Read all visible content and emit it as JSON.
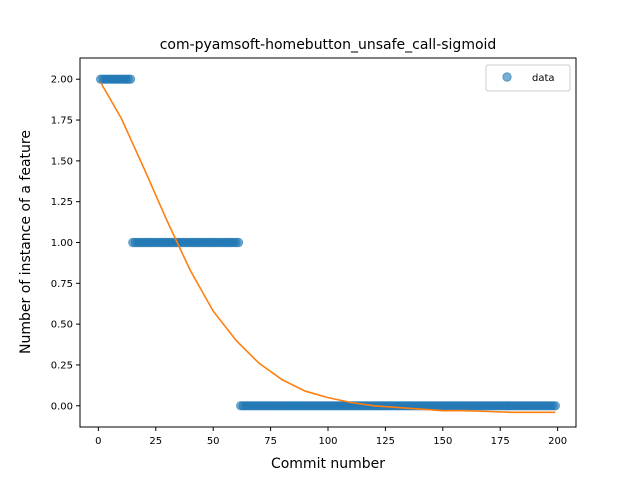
{
  "chart_data": {
    "type": "scatter",
    "title": "com-pyamsoft-homebutton_unsafe_call-sigmoid",
    "xlabel": "Commit number",
    "ylabel": "Number of instance of a feature",
    "xlim": [
      -8,
      208
    ],
    "ylim": [
      -0.13,
      2.13
    ],
    "xticks": [
      0,
      25,
      50,
      75,
      100,
      125,
      150,
      175,
      200
    ],
    "yticks": [
      0.0,
      0.25,
      0.5,
      0.75,
      1.0,
      1.25,
      1.5,
      1.75,
      2.0
    ],
    "xtick_labels": [
      "0",
      "25",
      "50",
      "75",
      "100",
      "125",
      "150",
      "175",
      "200"
    ],
    "ytick_labels": [
      "0.00",
      "0.25",
      "0.50",
      "0.75",
      "1.00",
      "1.25",
      "1.50",
      "1.75",
      "2.00"
    ],
    "grid": false,
    "legend_position": "top-right",
    "series": [
      {
        "name": "data",
        "kind": "scatter",
        "color": "#1f77b4",
        "segments": [
          {
            "x_start": 1,
            "x_end": 14,
            "y": 2
          },
          {
            "x_start": 15,
            "x_end": 61,
            "y": 1
          },
          {
            "x_start": 62,
            "x_end": 199,
            "y": 0
          }
        ]
      },
      {
        "name": "",
        "kind": "line",
        "color": "#ff7f0e",
        "x": [
          1,
          10,
          20,
          30,
          40,
          50,
          60,
          70,
          80,
          90,
          100,
          110,
          120,
          130,
          140,
          150,
          160,
          170,
          180,
          190,
          199
        ],
        "y": [
          1.98,
          1.76,
          1.45,
          1.13,
          0.83,
          0.58,
          0.4,
          0.26,
          0.16,
          0.09,
          0.05,
          0.02,
          0.0,
          -0.01,
          -0.02,
          -0.03,
          -0.03,
          -0.035,
          -0.04,
          -0.04,
          -0.04
        ]
      }
    ]
  }
}
